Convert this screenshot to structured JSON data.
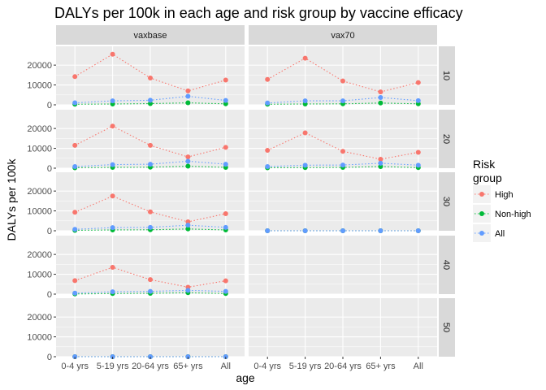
{
  "chart_data": {
    "type": "line",
    "title": "DALYs per 100k in each age and risk group by vaccine efficacy",
    "xlabel": "age",
    "ylabel": "DALYs per 100k",
    "categories": [
      "0-4 yrs",
      "5-19 yrs",
      "20-64 yrs",
      "65+ yrs",
      "All"
    ],
    "ylim": [
      0,
      28000
    ],
    "yticks": [
      0,
      10000,
      20000
    ],
    "grid": true,
    "line_style": "dotted",
    "columns": [
      "vaxbase",
      "vax70"
    ],
    "rows": [
      "10",
      "20",
      "30",
      "40",
      "50"
    ],
    "legend": {
      "title": "Risk group",
      "position": "right",
      "entries": [
        {
          "name": "High",
          "color": "#F8766D"
        },
        {
          "name": "Non-high",
          "color": "#00BA38"
        },
        {
          "name": "All",
          "color": "#619CFF"
        }
      ]
    },
    "panels": [
      {
        "column": "vaxbase",
        "row": "10",
        "series": [
          {
            "name": "High",
            "values": [
              14200,
              25500,
              13500,
              7000,
              12500
            ]
          },
          {
            "name": "Non-high",
            "values": [
              300,
              400,
              600,
              1000,
              500
            ]
          },
          {
            "name": "All",
            "values": [
              1000,
              2000,
              2300,
              4300,
              2200
            ]
          }
        ]
      },
      {
        "column": "vax70",
        "row": "10",
        "series": [
          {
            "name": "High",
            "values": [
              12800,
              23500,
              12000,
              6500,
              11200
            ]
          },
          {
            "name": "Non-high",
            "values": [
              300,
              400,
              500,
              900,
              500
            ]
          },
          {
            "name": "All",
            "values": [
              900,
              2000,
              2000,
              3700,
              2100
            ]
          }
        ]
      },
      {
        "column": "vaxbase",
        "row": "20",
        "series": [
          {
            "name": "High",
            "values": [
              11500,
              21200,
              11500,
              5700,
              10500
            ]
          },
          {
            "name": "Non-high",
            "values": [
              200,
              400,
              500,
              1000,
              400
            ]
          },
          {
            "name": "All",
            "values": [
              800,
              1800,
              2000,
              3500,
              2000
            ]
          }
        ]
      },
      {
        "column": "vax70",
        "row": "20",
        "series": [
          {
            "name": "High",
            "values": [
              9000,
              17800,
              8500,
              4500,
              8000
            ]
          },
          {
            "name": "Non-high",
            "values": [
              200,
              300,
              400,
              800,
              300
            ]
          },
          {
            "name": "All",
            "values": [
              800,
              1500,
              1600,
              2500,
              1500
            ]
          }
        ]
      },
      {
        "column": "vaxbase",
        "row": "30",
        "series": [
          {
            "name": "High",
            "values": [
              9300,
              17500,
              9500,
              4500,
              8600
            ]
          },
          {
            "name": "Non-high",
            "values": [
              200,
              400,
              500,
              900,
              400
            ]
          },
          {
            "name": "All",
            "values": [
              700,
              1600,
              1700,
              2800,
              1700
            ]
          }
        ]
      },
      {
        "column": "vax70",
        "row": "30",
        "series": [
          {
            "name": "High",
            "values": [
              0,
              0,
              0,
              0,
              0
            ]
          },
          {
            "name": "Non-high",
            "values": [
              0,
              0,
              0,
              0,
              0
            ]
          },
          {
            "name": "All",
            "values": [
              0,
              0,
              0,
              0,
              0
            ]
          }
        ]
      },
      {
        "column": "vaxbase",
        "row": "40",
        "series": [
          {
            "name": "High",
            "values": [
              6800,
              13500,
              7300,
              3500,
              6700
            ]
          },
          {
            "name": "Non-high",
            "values": [
              100,
              300,
              400,
              700,
              300
            ]
          },
          {
            "name": "All",
            "values": [
              500,
              1200,
              1400,
              1900,
              1400
            ]
          }
        ]
      },
      {
        "column": "vaxbase",
        "row": "50",
        "series": [
          {
            "name": "High",
            "values": [
              0,
              0,
              0,
              0,
              0
            ]
          },
          {
            "name": "Non-high",
            "values": [
              0,
              0,
              0,
              0,
              0
            ]
          },
          {
            "name": "All",
            "values": [
              0,
              0,
              0,
              0,
              0
            ]
          }
        ]
      }
    ]
  }
}
